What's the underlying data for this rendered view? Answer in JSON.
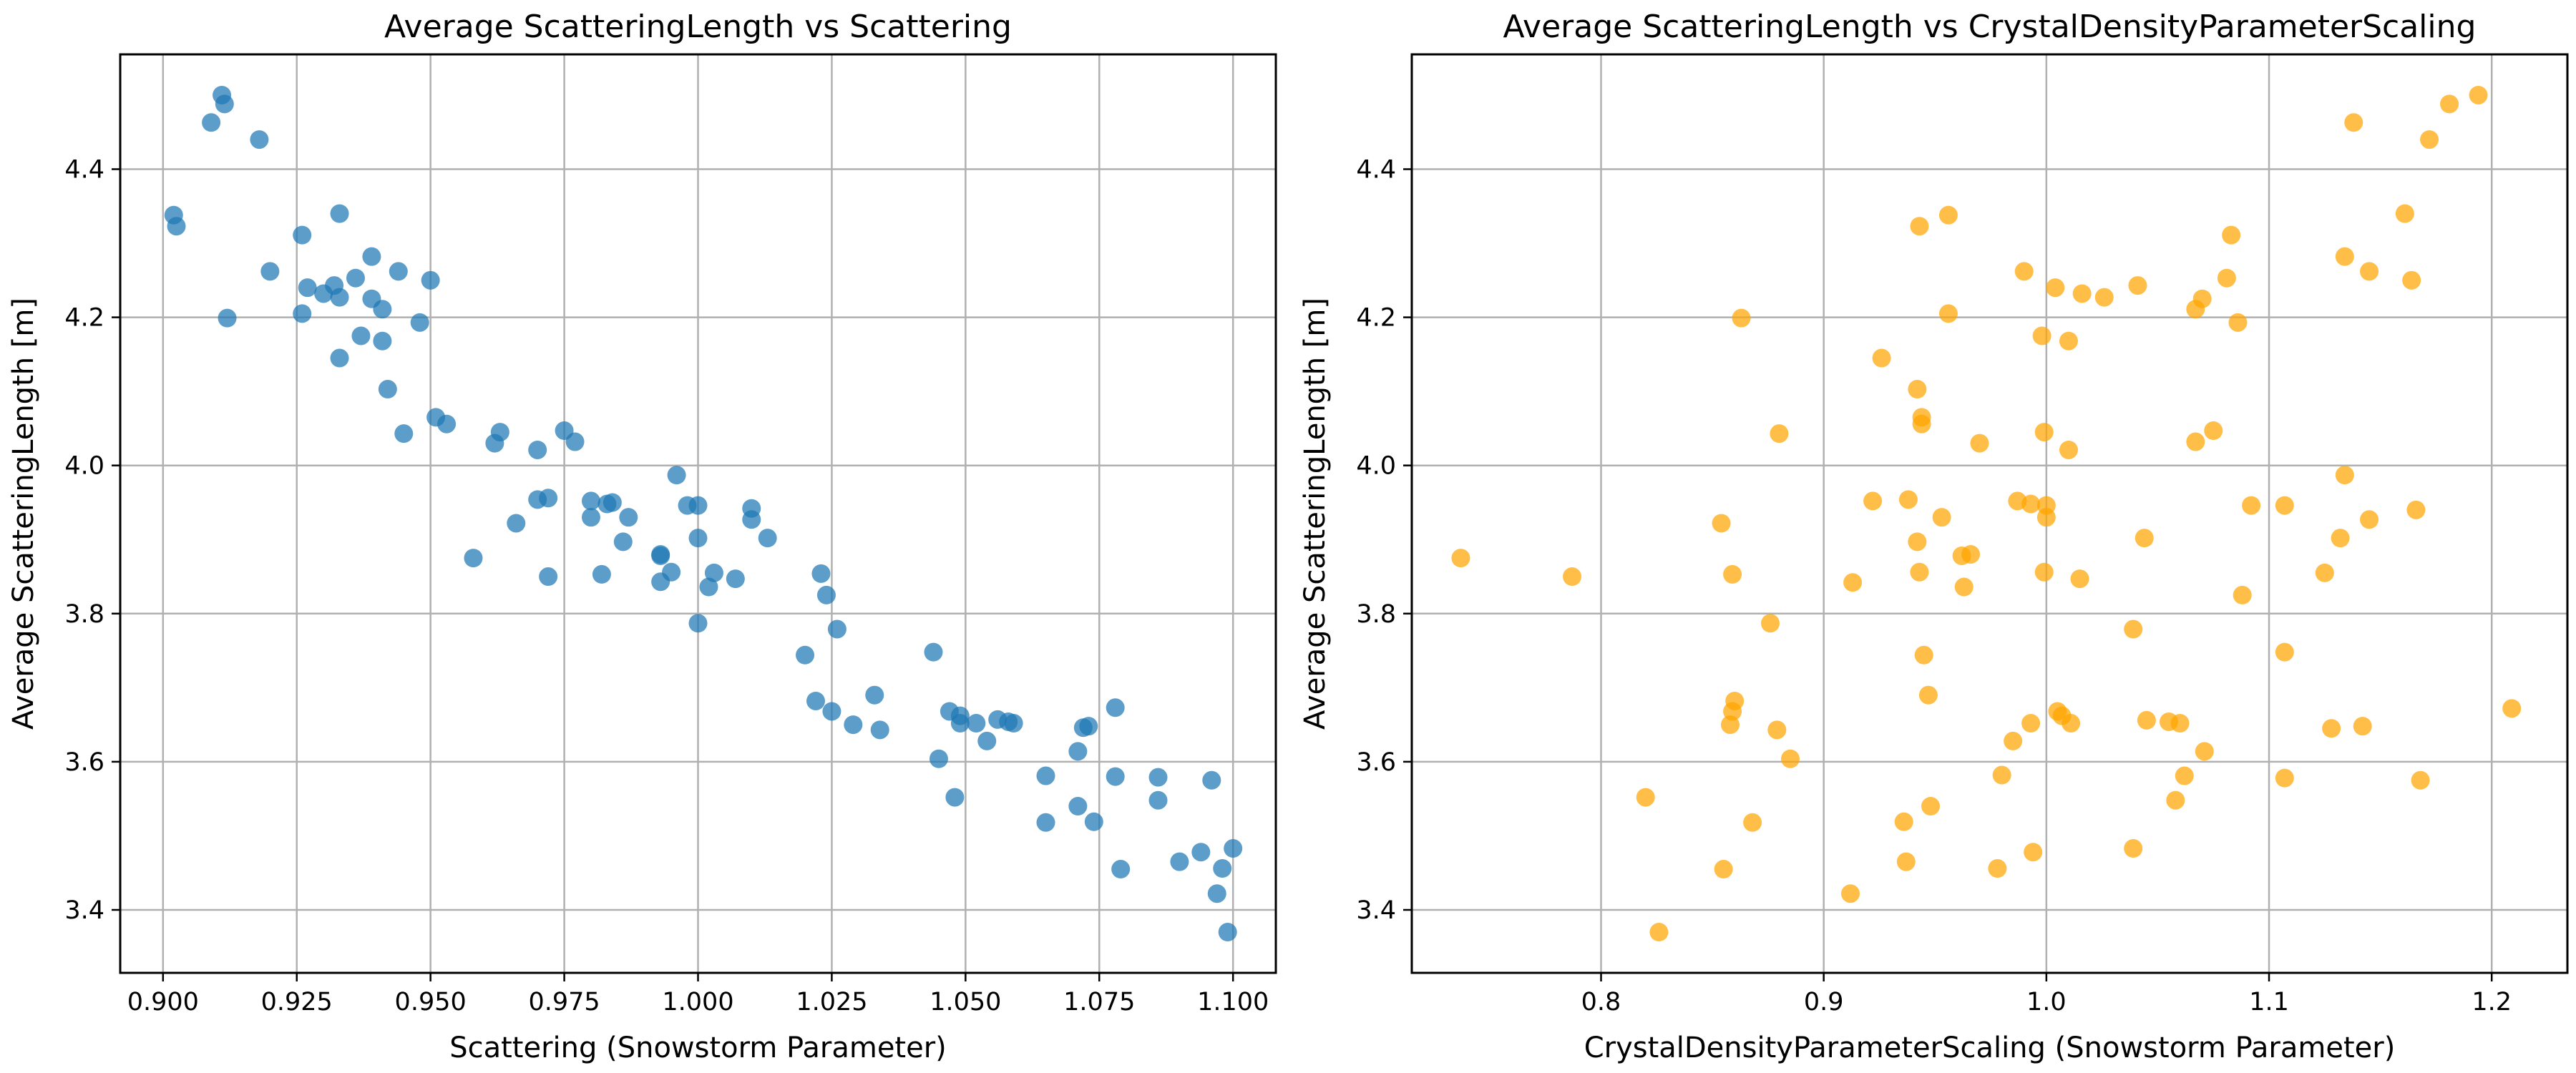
{
  "chart_data": [
    {
      "type": "scatter",
      "title": "Average ScatteringLength vs Scattering",
      "xlabel": "Scattering (Snowstorm Parameter)",
      "ylabel": "Average ScatteringLength [m]",
      "color": "#1f77b4",
      "xlim": [
        0.892,
        1.108
      ],
      "ylim": [
        3.315,
        4.555
      ],
      "xticks": [
        0.9,
        0.925,
        0.95,
        0.975,
        1.0,
        1.025,
        1.05,
        1.075,
        1.1
      ],
      "xtick_labels": [
        "0.900",
        "0.925",
        "0.950",
        "0.975",
        "1.000",
        "1.025",
        "1.050",
        "1.075",
        "1.100"
      ],
      "yticks": [
        3.4,
        3.6,
        3.8,
        4.0,
        4.2,
        4.4
      ],
      "ytick_labels": [
        "3.4",
        "3.6",
        "3.8",
        "4.0",
        "4.2",
        "4.4"
      ],
      "grid": true,
      "points": [
        [
          0.911,
          4.5
        ],
        [
          0.9115,
          4.488
        ],
        [
          0.909,
          4.463
        ],
        [
          0.918,
          4.44
        ],
        [
          0.902,
          4.338
        ],
        [
          0.9025,
          4.323
        ],
        [
          0.933,
          4.34
        ],
        [
          0.926,
          4.311
        ],
        [
          0.92,
          4.262
        ],
        [
          0.939,
          4.282
        ],
        [
          0.944,
          4.262
        ],
        [
          0.95,
          4.25
        ],
        [
          0.932,
          4.243
        ],
        [
          0.927,
          4.24
        ],
        [
          0.936,
          4.253
        ],
        [
          0.93,
          4.232
        ],
        [
          0.933,
          4.227
        ],
        [
          0.939,
          4.225
        ],
        [
          0.941,
          4.211
        ],
        [
          0.926,
          4.205
        ],
        [
          0.912,
          4.199
        ],
        [
          0.948,
          4.193
        ],
        [
          0.937,
          4.175
        ],
        [
          0.941,
          4.168
        ],
        [
          0.933,
          4.145
        ],
        [
          0.942,
          4.103
        ],
        [
          0.951,
          4.065
        ],
        [
          0.953,
          4.056
        ],
        [
          0.945,
          4.043
        ],
        [
          0.963,
          4.045
        ],
        [
          0.975,
          4.047
        ],
        [
          0.962,
          4.03
        ],
        [
          0.977,
          4.032
        ],
        [
          0.97,
          4.021
        ],
        [
          0.996,
          3.987
        ],
        [
          0.97,
          3.954
        ],
        [
          0.972,
          3.956
        ],
        [
          0.98,
          3.952
        ],
        [
          0.983,
          3.948
        ],
        [
          0.984,
          3.95
        ],
        [
          0.998,
          3.946
        ],
        [
          1.0,
          3.946
        ],
        [
          1.01,
          3.942
        ],
        [
          0.98,
          3.93
        ],
        [
          0.987,
          3.93
        ],
        [
          1.01,
          3.927
        ],
        [
          0.966,
          3.922
        ],
        [
          1.0,
          3.902
        ],
        [
          1.013,
          3.902
        ],
        [
          0.986,
          3.897
        ],
        [
          0.993,
          3.88
        ],
        [
          0.993,
          3.878
        ],
        [
          0.958,
          3.875
        ],
        [
          0.982,
          3.853
        ],
        [
          0.995,
          3.856
        ],
        [
          1.003,
          3.855
        ],
        [
          0.972,
          3.85
        ],
        [
          1.007,
          3.847
        ],
        [
          0.993,
          3.843
        ],
        [
          1.002,
          3.836
        ],
        [
          1.023,
          3.854
        ],
        [
          1.024,
          3.825
        ],
        [
          1.0,
          3.787
        ],
        [
          1.026,
          3.779
        ],
        [
          1.02,
          3.744
        ],
        [
          1.044,
          3.748
        ],
        [
          1.033,
          3.69
        ],
        [
          1.022,
          3.682
        ],
        [
          1.025,
          3.668
        ],
        [
          1.047,
          3.668
        ],
        [
          1.049,
          3.662
        ],
        [
          1.049,
          3.652
        ],
        [
          1.052,
          3.652
        ],
        [
          1.056,
          3.657
        ],
        [
          1.058,
          3.654
        ],
        [
          1.059,
          3.652
        ],
        [
          1.078,
          3.673
        ],
        [
          1.072,
          3.646
        ],
        [
          1.073,
          3.648
        ],
        [
          1.029,
          3.65
        ],
        [
          1.034,
          3.643
        ],
        [
          1.054,
          3.628
        ],
        [
          1.071,
          3.614
        ],
        [
          1.045,
          3.604
        ],
        [
          1.065,
          3.581
        ],
        [
          1.078,
          3.58
        ],
        [
          1.086,
          3.579
        ],
        [
          1.096,
          3.575
        ],
        [
          1.048,
          3.552
        ],
        [
          1.086,
          3.548
        ],
        [
          1.071,
          3.54
        ],
        [
          1.065,
          3.518
        ],
        [
          1.074,
          3.519
        ],
        [
          1.1,
          3.483
        ],
        [
          1.094,
          3.478
        ],
        [
          1.09,
          3.465
        ],
        [
          1.079,
          3.455
        ],
        [
          1.098,
          3.456
        ],
        [
          1.097,
          3.422
        ],
        [
          1.099,
          3.37
        ]
      ]
    },
    {
      "type": "scatter",
      "title": "Average ScatteringLength vs CrystalDensityParameterScaling",
      "xlabel": "CrystalDensityParameterScaling (Snowstorm Parameter)",
      "ylabel": "Average ScatteringLength [m]",
      "color": "#ffa500",
      "xlim": [
        0.715,
        1.234
      ],
      "ylim": [
        3.315,
        4.555
      ],
      "xticks": [
        0.8,
        0.9,
        1.0,
        1.1,
        1.2
      ],
      "xtick_labels": [
        "0.8",
        "0.9",
        "1.0",
        "1.1",
        "1.2"
      ],
      "yticks": [
        3.4,
        3.6,
        3.8,
        4.0,
        4.2,
        4.4
      ],
      "ytick_labels": [
        "3.4",
        "3.6",
        "3.8",
        "4.0",
        "4.2",
        "4.4"
      ],
      "grid": true,
      "points": [
        [
          1.194,
          4.5
        ],
        [
          1.181,
          4.488
        ],
        [
          1.138,
          4.463
        ],
        [
          1.172,
          4.44
        ],
        [
          0.956,
          4.338
        ],
        [
          0.943,
          4.323
        ],
        [
          1.161,
          4.34
        ],
        [
          1.083,
          4.311
        ],
        [
          1.134,
          4.282
        ],
        [
          1.145,
          4.262
        ],
        [
          0.99,
          4.262
        ],
        [
          1.164,
          4.25
        ],
        [
          1.081,
          4.253
        ],
        [
          1.041,
          4.243
        ],
        [
          1.004,
          4.24
        ],
        [
          1.016,
          4.232
        ],
        [
          1.026,
          4.227
        ],
        [
          1.07,
          4.225
        ],
        [
          1.067,
          4.211
        ],
        [
          0.956,
          4.205
        ],
        [
          0.863,
          4.199
        ],
        [
          1.086,
          4.193
        ],
        [
          0.998,
          4.175
        ],
        [
          1.01,
          4.168
        ],
        [
          0.926,
          4.145
        ],
        [
          0.942,
          4.103
        ],
        [
          0.944,
          4.065
        ],
        [
          0.944,
          4.056
        ],
        [
          0.88,
          4.043
        ],
        [
          0.999,
          4.045
        ],
        [
          1.075,
          4.047
        ],
        [
          1.067,
          4.032
        ],
        [
          0.97,
          4.03
        ],
        [
          1.01,
          4.021
        ],
        [
          1.134,
          3.987
        ],
        [
          0.938,
          3.954
        ],
        [
          0.922,
          3.952
        ],
        [
          0.987,
          3.952
        ],
        [
          0.993,
          3.948
        ],
        [
          1.0,
          3.946
        ],
        [
          1.092,
          3.946
        ],
        [
          1.107,
          3.946
        ],
        [
          1.166,
          3.94
        ],
        [
          0.953,
          3.93
        ],
        [
          1.145,
          3.927
        ],
        [
          1.0,
          3.93
        ],
        [
          0.854,
          3.922
        ],
        [
          1.044,
          3.902
        ],
        [
          1.132,
          3.902
        ],
        [
          0.942,
          3.897
        ],
        [
          0.966,
          3.88
        ],
        [
          0.962,
          3.878
        ],
        [
          0.737,
          3.875
        ],
        [
          0.943,
          3.856
        ],
        [
          0.859,
          3.853
        ],
        [
          0.999,
          3.856
        ],
        [
          0.787,
          3.85
        ],
        [
          1.015,
          3.847
        ],
        [
          0.913,
          3.842
        ],
        [
          0.963,
          3.836
        ],
        [
          1.125,
          3.855
        ],
        [
          1.088,
          3.825
        ],
        [
          0.876,
          3.787
        ],
        [
          1.039,
          3.779
        ],
        [
          0.945,
          3.744
        ],
        [
          1.107,
          3.748
        ],
        [
          0.947,
          3.69
        ],
        [
          0.86,
          3.682
        ],
        [
          1.005,
          3.668
        ],
        [
          1.209,
          3.672
        ],
        [
          0.859,
          3.668
        ],
        [
          1.007,
          3.662
        ],
        [
          1.045,
          3.656
        ],
        [
          1.055,
          3.654
        ],
        [
          0.993,
          3.652
        ],
        [
          1.011,
          3.652
        ],
        [
          1.06,
          3.652
        ],
        [
          1.142,
          3.648
        ],
        [
          0.879,
          3.643
        ],
        [
          0.858,
          3.65
        ],
        [
          1.128,
          3.645
        ],
        [
          0.985,
          3.628
        ],
        [
          1.071,
          3.614
        ],
        [
          0.885,
          3.604
        ],
        [
          1.062,
          3.581
        ],
        [
          0.98,
          3.582
        ],
        [
          1.107,
          3.578
        ],
        [
          1.168,
          3.575
        ],
        [
          0.82,
          3.552
        ],
        [
          1.058,
          3.548
        ],
        [
          0.948,
          3.54
        ],
        [
          0.868,
          3.518
        ],
        [
          0.936,
          3.519
        ],
        [
          1.039,
          3.483
        ],
        [
          0.994,
          3.478
        ],
        [
          0.937,
          3.465
        ],
        [
          0.855,
          3.455
        ],
        [
          0.978,
          3.456
        ],
        [
          0.912,
          3.422
        ],
        [
          0.826,
          3.37
        ]
      ]
    }
  ]
}
